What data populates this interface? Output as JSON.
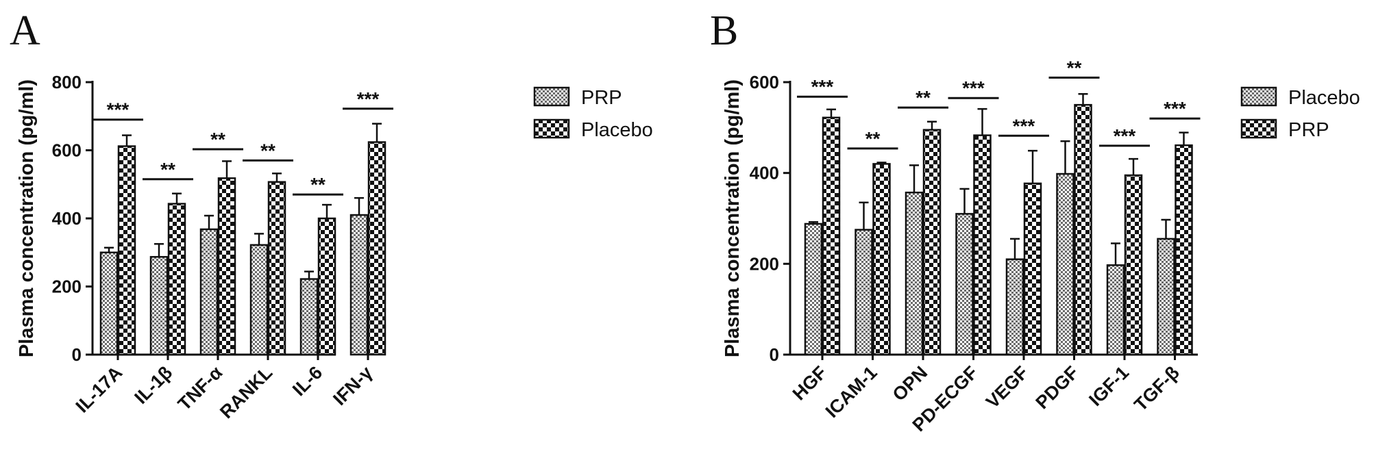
{
  "panels": [
    {
      "letter": "A"
    },
    {
      "letter": "B"
    }
  ],
  "chart_data": [
    {
      "type": "bar",
      "ylabel": "Plasma concentration (pg/ml)",
      "xlabel": "",
      "ylim": [
        0,
        800
      ],
      "yticks": [
        0,
        200,
        400,
        600,
        800
      ],
      "categories": [
        "IL-17A",
        "IL-1β",
        "TNF-α",
        "RANKL",
        "IL-6",
        "IFN-γ"
      ],
      "series": [
        {
          "name": "PRP",
          "pattern": "fine-check",
          "values": [
            300,
            287,
            368,
            322,
            222,
            410
          ],
          "errors": [
            14,
            38,
            40,
            33,
            22,
            50
          ]
        },
        {
          "name": "Placebo",
          "pattern": "coarse-check",
          "values": [
            612,
            443,
            518,
            507,
            400,
            624
          ],
          "errors": [
            32,
            30,
            50,
            25,
            40,
            54
          ]
        }
      ],
      "significance": [
        "***",
        "**",
        "**",
        "**",
        "**",
        "***"
      ],
      "significance_level": [
        690,
        515,
        603,
        570,
        470,
        722
      ],
      "legend_position": "right"
    },
    {
      "type": "bar",
      "ylabel": "Plasma concentration (pg/ml)",
      "xlabel": "",
      "ylim": [
        0,
        600
      ],
      "yticks": [
        0,
        200,
        400,
        600
      ],
      "categories": [
        "HGF",
        "ICAM-1",
        "OPN",
        "PD-ECGF",
        "VEGF",
        "PDGF",
        "IGF-1",
        "TGF-β"
      ],
      "series": [
        {
          "name": "Placebo",
          "pattern": "fine-check",
          "values": [
            288,
            275,
            357,
            310,
            210,
            398,
            197,
            255
          ],
          "errors": [
            4,
            60,
            60,
            55,
            45,
            72,
            48,
            42
          ]
        },
        {
          "name": "PRP",
          "pattern": "coarse-check",
          "values": [
            522,
            420,
            495,
            483,
            377,
            550,
            395,
            461
          ],
          "errors": [
            18,
            3,
            18,
            58,
            72,
            24,
            36,
            28
          ]
        }
      ],
      "significance": [
        "***",
        "**",
        "**",
        "***",
        "***",
        "**",
        "***",
        "***"
      ],
      "significance_level": [
        568,
        454,
        544,
        565,
        482,
        610,
        460,
        520
      ],
      "legend_position": "right"
    }
  ]
}
